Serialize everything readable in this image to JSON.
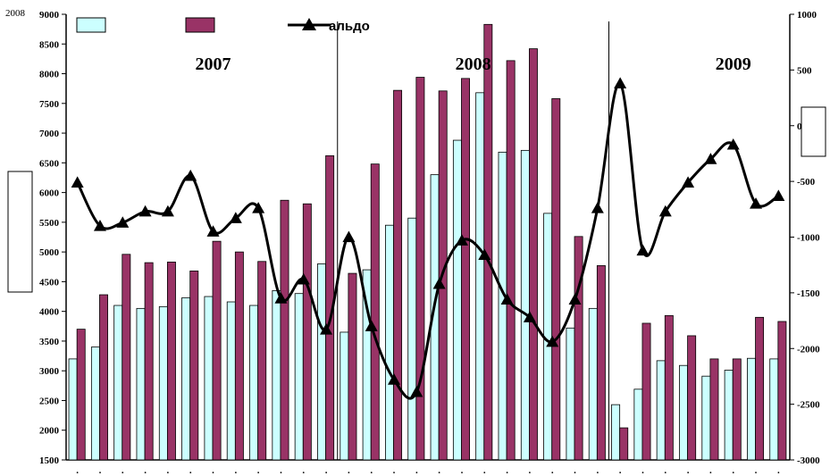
{
  "chart_data": {
    "type": "bar",
    "corner_label": "2008",
    "year_labels": [
      "2007",
      "2008",
      "2009"
    ],
    "year_label_months": [
      6,
      17.5,
      29
    ],
    "separators_after_month": [
      11,
      23
    ],
    "months": 32,
    "x_tick_label": ".",
    "left_axis": {
      "ylim": [
        1500,
        9000
      ],
      "ticks": [
        1500,
        2000,
        2500,
        3000,
        3500,
        4000,
        4500,
        5000,
        5500,
        6000,
        6500,
        7000,
        7500,
        8000,
        8500,
        9000
      ]
    },
    "right_axis": {
      "ylim": [
        -3000,
        1000
      ],
      "ticks": [
        -3000,
        -2500,
        -2000,
        -1500,
        -1000,
        -500,
        0,
        500,
        1000
      ]
    },
    "legend_line_label": "альдо",
    "colors": {
      "series_a": "#ccffff",
      "series_b": "#993366",
      "line": "#000000"
    },
    "series": [
      {
        "axis": "left",
        "values": [
          3200,
          3400,
          4100,
          4050,
          4080,
          4230,
          4250,
          4160,
          4100,
          4350,
          4300,
          4800,
          3650,
          4700,
          5450,
          5570,
          6300,
          6880,
          7680,
          6680,
          6710,
          5650,
          3720,
          4050,
          2430,
          2690,
          3170,
          3090,
          2910,
          3010,
          3210,
          3200
        ]
      },
      {
        "axis": "left",
        "values": [
          3700,
          4280,
          4960,
          4820,
          4830,
          4680,
          5180,
          5000,
          4840,
          5870,
          5810,
          6620,
          4640,
          6480,
          7720,
          7940,
          7710,
          7920,
          8830,
          8220,
          8420,
          7580,
          5260,
          4770,
          2040,
          3800,
          3930,
          3590,
          3200,
          3200,
          3900,
          3830
        ]
      },
      {
        "name": "альдо",
        "type": "line",
        "axis": "right",
        "marker": "triangle",
        "values": [
          -510,
          -900,
          -870,
          -770,
          -770,
          -450,
          -950,
          -830,
          -740,
          -1550,
          -1380,
          -1830,
          -1000,
          -1800,
          -2280,
          -2390,
          -1420,
          -1030,
          -1160,
          -1560,
          -1720,
          -1940,
          -1560,
          -740,
          380,
          -1120,
          -770,
          -510,
          -300,
          -170,
          -700,
          -630
        ]
      }
    ]
  }
}
